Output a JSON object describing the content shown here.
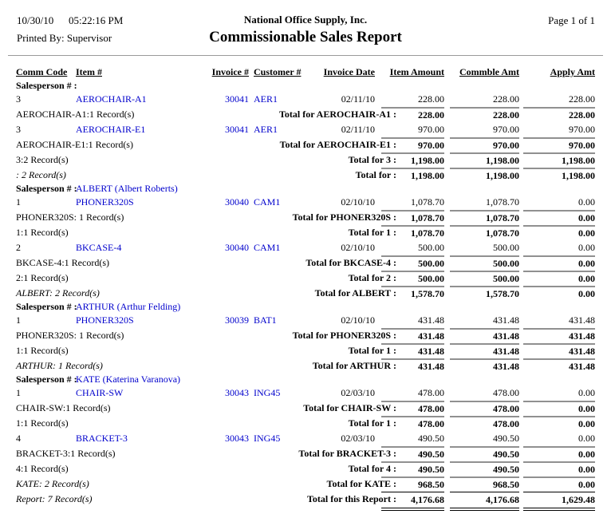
{
  "header": {
    "date": "10/30/10",
    "time": "05:22:16 PM",
    "printed_by": "Printed By: Supervisor",
    "company": "National Office Supply, Inc.",
    "title": "Commissionable Sales Report",
    "page_info": "Page 1 of 1"
  },
  "columns": [
    {
      "label": "Comm Code"
    },
    {
      "label": "Item #"
    },
    {
      "label": "Invoice #"
    },
    {
      "label": "Customer #"
    },
    {
      "label": "Invoice Date"
    },
    {
      "label": "Item Amount"
    },
    {
      "label": "Commble Amt"
    },
    {
      "label": "Apply Amt"
    }
  ],
  "rows": [
    {
      "type": "group",
      "label": "Salesperson # :",
      "name": ""
    },
    {
      "type": "detail",
      "comm": "3",
      "item": "AEROCHAIR-A1",
      "invoice": "30041",
      "customer": "AER1",
      "date": "02/11/10",
      "amounts": [
        "228.00",
        "228.00",
        "228.00"
      ]
    },
    {
      "type": "total",
      "left": "AEROCHAIR-A1:1 Record(s)",
      "left_italic": false,
      "label": "Total for AEROCHAIR-A1 :",
      "amounts": [
        "228.00",
        "228.00",
        "228.00"
      ]
    },
    {
      "type": "detail",
      "comm": "3",
      "item": "AEROCHAIR-E1",
      "invoice": "30041",
      "customer": "AER1",
      "date": "02/11/10",
      "amounts": [
        "970.00",
        "970.00",
        "970.00"
      ]
    },
    {
      "type": "total",
      "left": "AEROCHAIR-E1:1 Record(s)",
      "left_italic": false,
      "label": "Total for AEROCHAIR-E1 :",
      "amounts": [
        "970.00",
        "970.00",
        "970.00"
      ]
    },
    {
      "type": "total",
      "left": "3:2 Record(s)",
      "left_italic": false,
      "label": "Total for 3 :",
      "amounts": [
        "1,198.00",
        "1,198.00",
        "1,198.00"
      ]
    },
    {
      "type": "total",
      "left": ": 2 Record(s)",
      "left_italic": true,
      "label": "Total for :",
      "amounts": [
        "1,198.00",
        "1,198.00",
        "1,198.00"
      ]
    },
    {
      "type": "group",
      "label": "Salesperson # :",
      "name": "ALBERT (Albert Roberts)"
    },
    {
      "type": "detail",
      "comm": "1",
      "item": "PHONER320S",
      "invoice": "30040",
      "customer": "CAM1",
      "date": "02/10/10",
      "amounts": [
        "1,078.70",
        "1,078.70",
        "0.00"
      ]
    },
    {
      "type": "total",
      "left": "PHONER320S: 1 Record(s)",
      "left_italic": false,
      "label": "Total for PHONER320S :",
      "amounts": [
        "1,078.70",
        "1,078.70",
        "0.00"
      ]
    },
    {
      "type": "total",
      "left": "1:1 Record(s)",
      "left_italic": false,
      "label": "Total for 1 :",
      "amounts": [
        "1,078.70",
        "1,078.70",
        "0.00"
      ]
    },
    {
      "type": "detail",
      "comm": "2",
      "item": "BKCASE-4",
      "invoice": "30040",
      "customer": "CAM1",
      "date": "02/10/10",
      "amounts": [
        "500.00",
        "500.00",
        "0.00"
      ]
    },
    {
      "type": "total",
      "left": "BKCASE-4:1 Record(s)",
      "left_italic": false,
      "label": "Total for BKCASE-4 :",
      "amounts": [
        "500.00",
        "500.00",
        "0.00"
      ]
    },
    {
      "type": "total",
      "left": "2:1 Record(s)",
      "left_italic": false,
      "label": "Total for 2 :",
      "amounts": [
        "500.00",
        "500.00",
        "0.00"
      ]
    },
    {
      "type": "total",
      "left": "ALBERT: 2 Record(s)",
      "left_italic": true,
      "label": "Total for ALBERT :",
      "amounts": [
        "1,578.70",
        "1,578.70",
        "0.00"
      ]
    },
    {
      "type": "group",
      "label": "Salesperson # :",
      "name": "ARTHUR (Arthur Felding)"
    },
    {
      "type": "detail",
      "comm": "1",
      "item": "PHONER320S",
      "invoice": "30039",
      "customer": "BAT1",
      "date": "02/10/10",
      "amounts": [
        "431.48",
        "431.48",
        "431.48"
      ]
    },
    {
      "type": "total",
      "left": "PHONER320S: 1 Record(s)",
      "left_italic": false,
      "label": "Total for PHONER320S :",
      "amounts": [
        "431.48",
        "431.48",
        "431.48"
      ]
    },
    {
      "type": "total",
      "left": "1:1 Record(s)",
      "left_italic": false,
      "label": "Total for 1 :",
      "amounts": [
        "431.48",
        "431.48",
        "431.48"
      ]
    },
    {
      "type": "total",
      "left": "ARTHUR: 1 Record(s)",
      "left_italic": true,
      "label": "Total for ARTHUR :",
      "amounts": [
        "431.48",
        "431.48",
        "431.48"
      ]
    },
    {
      "type": "group",
      "label": "Salesperson # :",
      "name": "KATE (Katerina Varanova)"
    },
    {
      "type": "detail",
      "comm": "1",
      "item": "CHAIR-SW",
      "invoice": "30043",
      "customer": "ING45",
      "date": "02/03/10",
      "amounts": [
        "478.00",
        "478.00",
        "0.00"
      ]
    },
    {
      "type": "total",
      "left": "CHAIR-SW:1 Record(s)",
      "left_italic": false,
      "label": "Total for CHAIR-SW :",
      "amounts": [
        "478.00",
        "478.00",
        "0.00"
      ]
    },
    {
      "type": "total",
      "left": "1:1 Record(s)",
      "left_italic": false,
      "label": "Total for 1 :",
      "amounts": [
        "478.00",
        "478.00",
        "0.00"
      ]
    },
    {
      "type": "detail",
      "comm": "4",
      "item": "BRACKET-3",
      "invoice": "30043",
      "customer": "ING45",
      "date": "02/03/10",
      "amounts": [
        "490.50",
        "490.50",
        "0.00"
      ]
    },
    {
      "type": "total",
      "left": "BRACKET-3:1 Record(s)",
      "left_italic": false,
      "label": "Total for BRACKET-3 :",
      "amounts": [
        "490.50",
        "490.50",
        "0.00"
      ]
    },
    {
      "type": "total",
      "left": "4:1 Record(s)",
      "left_italic": false,
      "label": "Total for 4 :",
      "amounts": [
        "490.50",
        "490.50",
        "0.00"
      ]
    },
    {
      "type": "total",
      "left": "KATE: 2 Record(s)",
      "left_italic": true,
      "label": "Total for KATE :",
      "amounts": [
        "968.50",
        "968.50",
        "0.00"
      ]
    },
    {
      "type": "report",
      "left": "Report: 7 Record(s)",
      "left_italic": true,
      "label": "Total for this Report :",
      "amounts": [
        "4,176.68",
        "4,176.68",
        "1,629.48"
      ]
    }
  ],
  "colors": {
    "link_blue": "#0000cc",
    "header_rule": "#9a9a9a",
    "total_line": "#909090",
    "report_line": "#000000"
  }
}
